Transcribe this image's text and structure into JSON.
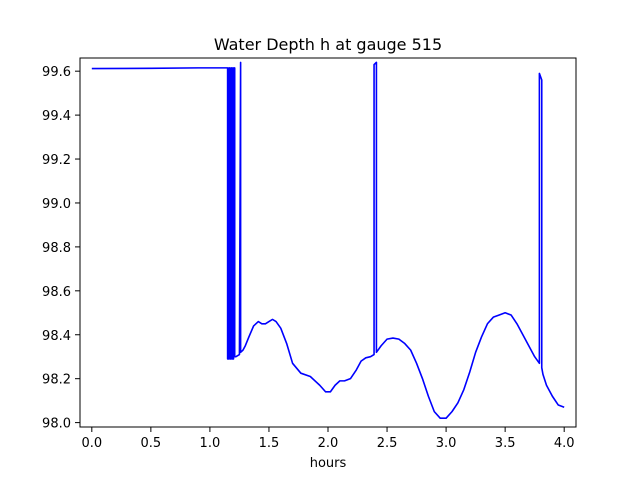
{
  "chart_data": {
    "type": "line",
    "title": "Water Depth h at gauge 515",
    "xlabel": "hours",
    "ylabel": "",
    "xlim": [
      -0.1,
      4.1
    ],
    "ylim": [
      97.98,
      99.66
    ],
    "x_ticks": [
      0.0,
      0.5,
      1.0,
      1.5,
      2.0,
      2.5,
      3.0,
      3.5,
      4.0
    ],
    "x_tick_labels": [
      "0.0",
      "0.5",
      "1.0",
      "1.5",
      "2.0",
      "2.5",
      "3.0",
      "3.5",
      "4.0"
    ],
    "y_ticks": [
      98.0,
      98.2,
      98.4,
      98.6,
      98.8,
      99.0,
      99.2,
      99.4,
      99.6
    ],
    "y_tick_labels": [
      "98.0",
      "98.2",
      "98.4",
      "98.6",
      "98.8",
      "99.0",
      "99.2",
      "99.4",
      "99.6"
    ],
    "grid": false,
    "series": [
      {
        "color": "#0000ff",
        "x": [
          0.0,
          0.5,
          0.9,
          1.15,
          1.15,
          1.16,
          1.16,
          1.17,
          1.17,
          1.18,
          1.18,
          1.19,
          1.19,
          1.2,
          1.2,
          1.21,
          1.21,
          1.22,
          1.22,
          1.25,
          1.26,
          1.26,
          1.28,
          1.3,
          1.33,
          1.37,
          1.41,
          1.44,
          1.47,
          1.5,
          1.53,
          1.56,
          1.6,
          1.65,
          1.7,
          1.77,
          1.85,
          1.93,
          1.98,
          2.02,
          2.06,
          2.1,
          2.14,
          2.19,
          2.24,
          2.28,
          2.32,
          2.36,
          2.39,
          2.39,
          2.41,
          2.41,
          2.45,
          2.5,
          2.55,
          2.6,
          2.65,
          2.7,
          2.75,
          2.8,
          2.85,
          2.9,
          2.95,
          3.0,
          3.05,
          3.1,
          3.15,
          3.2,
          3.25,
          3.3,
          3.35,
          3.4,
          3.45,
          3.5,
          3.55,
          3.6,
          3.65,
          3.7,
          3.75,
          3.79,
          3.79,
          3.81,
          3.81,
          3.82,
          3.85,
          3.9,
          3.95,
          4.0
        ],
        "y": [
          99.612,
          99.613,
          99.615,
          99.615,
          98.29,
          98.29,
          99.615,
          99.615,
          98.29,
          98.29,
          99.615,
          99.615,
          98.29,
          98.29,
          99.615,
          99.615,
          98.3,
          98.3,
          98.3,
          98.31,
          99.64,
          98.32,
          98.33,
          98.35,
          98.39,
          98.44,
          98.46,
          98.45,
          98.45,
          98.46,
          98.47,
          98.46,
          98.43,
          98.36,
          98.27,
          98.225,
          98.21,
          98.17,
          98.14,
          98.14,
          98.17,
          98.19,
          98.19,
          98.2,
          98.24,
          98.28,
          98.295,
          98.3,
          98.31,
          99.63,
          99.64,
          98.32,
          98.35,
          98.38,
          98.385,
          98.38,
          98.36,
          98.33,
          98.27,
          98.2,
          98.12,
          98.05,
          98.02,
          98.02,
          98.05,
          98.09,
          98.15,
          98.23,
          98.32,
          98.39,
          98.45,
          98.48,
          98.49,
          98.5,
          98.49,
          98.45,
          98.4,
          98.35,
          98.3,
          98.27,
          99.59,
          99.56,
          98.25,
          98.22,
          98.17,
          98.12,
          98.08,
          98.07
        ]
      }
    ]
  }
}
